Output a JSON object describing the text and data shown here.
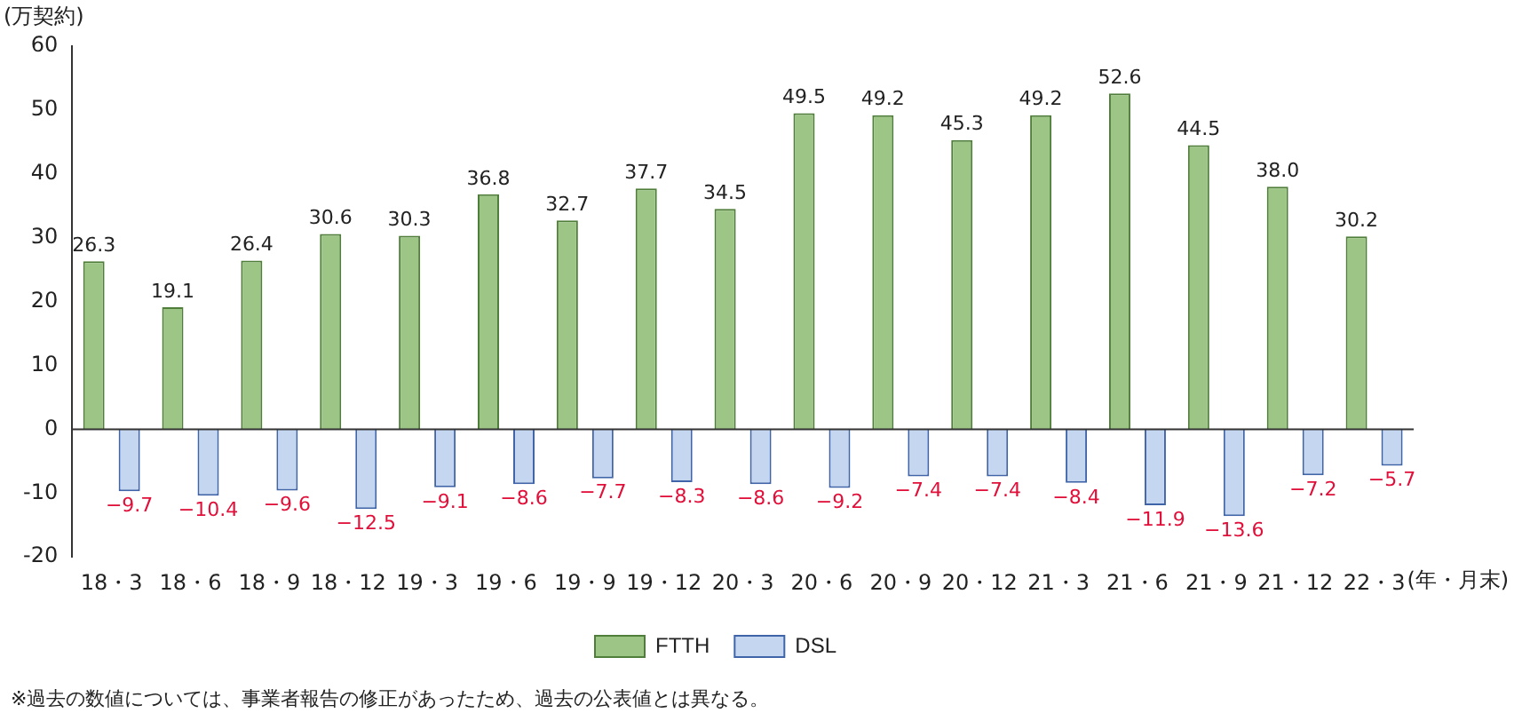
{
  "chart_data": {
    "type": "bar",
    "ylabel": "(万契約)",
    "xlabel": "(年・月末)",
    "categories": [
      "18・3",
      "18・6",
      "18・9",
      "18・12",
      "19・3",
      "19・6",
      "19・9",
      "19・12",
      "20・3",
      "20・6",
      "20・9",
      "20・12",
      "21・3",
      "21・6",
      "21・9",
      "21・12",
      "22・3"
    ],
    "series": [
      {
        "name": "FTTH",
        "color": "#9dc586",
        "values": [
          26.3,
          19.1,
          26.4,
          30.6,
          30.3,
          36.8,
          32.7,
          37.7,
          34.5,
          49.5,
          49.2,
          45.3,
          49.2,
          52.6,
          44.5,
          38.0,
          30.2
        ],
        "value_labels": [
          "26.3",
          "19.1",
          "26.4",
          "30.6",
          "30.3",
          "36.8",
          "32.7",
          "37.7",
          "34.5",
          "49.5",
          "49.2",
          "45.3",
          "49.2",
          "52.6",
          "44.5",
          "38.0",
          "30.2"
        ]
      },
      {
        "name": "DSL",
        "color": "#c5d6f0",
        "values": [
          -9.7,
          -10.4,
          -9.6,
          -12.5,
          -9.1,
          -8.6,
          -7.7,
          -8.3,
          -8.6,
          -9.2,
          -7.4,
          -7.4,
          -8.4,
          -11.9,
          -13.6,
          -7.2,
          -5.7
        ],
        "value_labels": [
          "−9.7",
          "−10.4",
          "−9.6",
          "−12.5",
          "−9.1",
          "−8.6",
          "−7.7",
          "−8.3",
          "−8.6",
          "−9.2",
          "−7.4",
          "−7.4",
          "−8.4",
          "−11.9",
          "−13.6",
          "−7.2",
          "−5.7"
        ]
      }
    ],
    "ylim": [
      -20,
      60
    ],
    "yticks": [
      -20,
      -10,
      0,
      10,
      20,
      30,
      40,
      50,
      60
    ],
    "grid": false,
    "legend": "bottom",
    "ref_lines": [
      {
        "axis": "y",
        "value": 0,
        "color": "#333333"
      }
    ],
    "annotations": [
      "※過去の数値については、事業者報告の修正があったため、過去の公表値とは異なる。"
    ]
  }
}
